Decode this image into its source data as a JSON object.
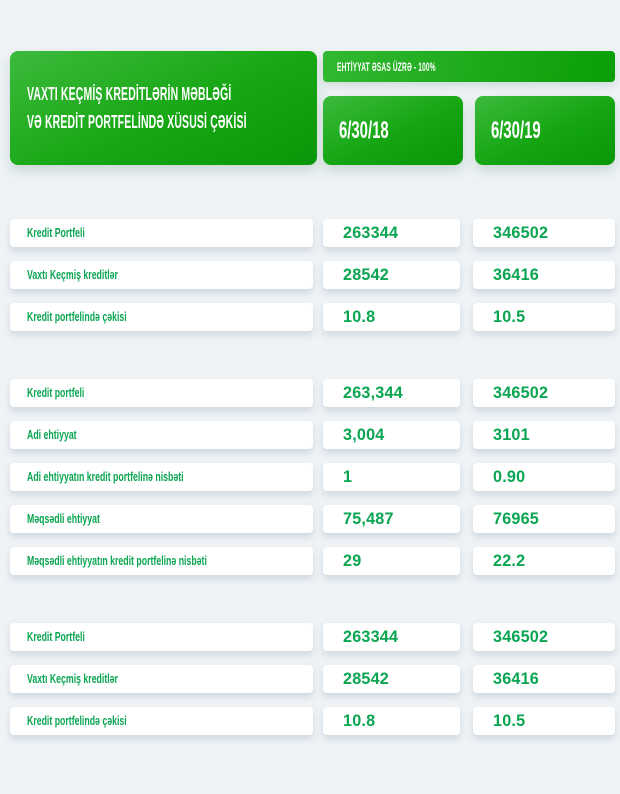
{
  "title": {
    "line1": "VAXTI KEÇMİŞ KREDİTLƏRİN MƏBLƏĞİ",
    "line2": "VƏ KREDİT PORTFELİNDƏ XÜSUSİ ÇƏKİSİ"
  },
  "colors": {
    "page_bg": "#eff3f6",
    "green_gradient_start": "#3cba3c",
    "green_gradient_end": "#089708",
    "text_green": "#0aa551",
    "card_bg": "#ffffff"
  },
  "chart_data": {
    "type": "table",
    "title": "VAXTI KEÇMİŞ KREDİTLƏRİN MƏBLƏĞİ VƏ KREDİT PORTFELİNDƏ XÜSUSİ ÇƏKİSİ",
    "badge": "EHTİYYAT ƏSAS ÜZRƏ - 100%",
    "columns": [
      "6/30/18",
      "6/30/19"
    ],
    "sections": [
      {
        "rows": [
          {
            "label": "Kredit Portfeli",
            "v2018": "263344",
            "v2019": "346502"
          },
          {
            "label": "Vaxtı Keçmiş kreditlər",
            "v2018": "28542",
            "v2019": "36416"
          },
          {
            "label": "Kredit portfelində çəkisi",
            "v2018": "10.8",
            "v2019": "10.5"
          }
        ]
      },
      {
        "rows": [
          {
            "label": "Kredit portfeli",
            "v2018": "263,344",
            "v2019": "346502"
          },
          {
            "label": "Adi ehtiyyat",
            "v2018": "3,004",
            "v2019": "3101"
          },
          {
            "label": "Adi ehtiyyatın kredit portfelinə nisbəti",
            "v2018": "1",
            "v2019": "0.90"
          },
          {
            "label": "Məqsədli ehtiyyat",
            "v2018": "75,487",
            "v2019": "76965"
          },
          {
            "label": "Məqsədli ehtiyyatın kredit portfelinə nisbəti",
            "v2018": "29",
            "v2019": "22.2"
          }
        ]
      },
      {
        "rows": [
          {
            "label": "Kredit Portfeli",
            "v2018": "263344",
            "v2019": "346502"
          },
          {
            "label": "Vaxtı Keçmiş kreditlər",
            "v2018": "28542",
            "v2019": "36416"
          },
          {
            "label": "Kredit portfelində çəkisi",
            "v2018": "10.8",
            "v2019": "10.5"
          }
        ]
      }
    ]
  }
}
